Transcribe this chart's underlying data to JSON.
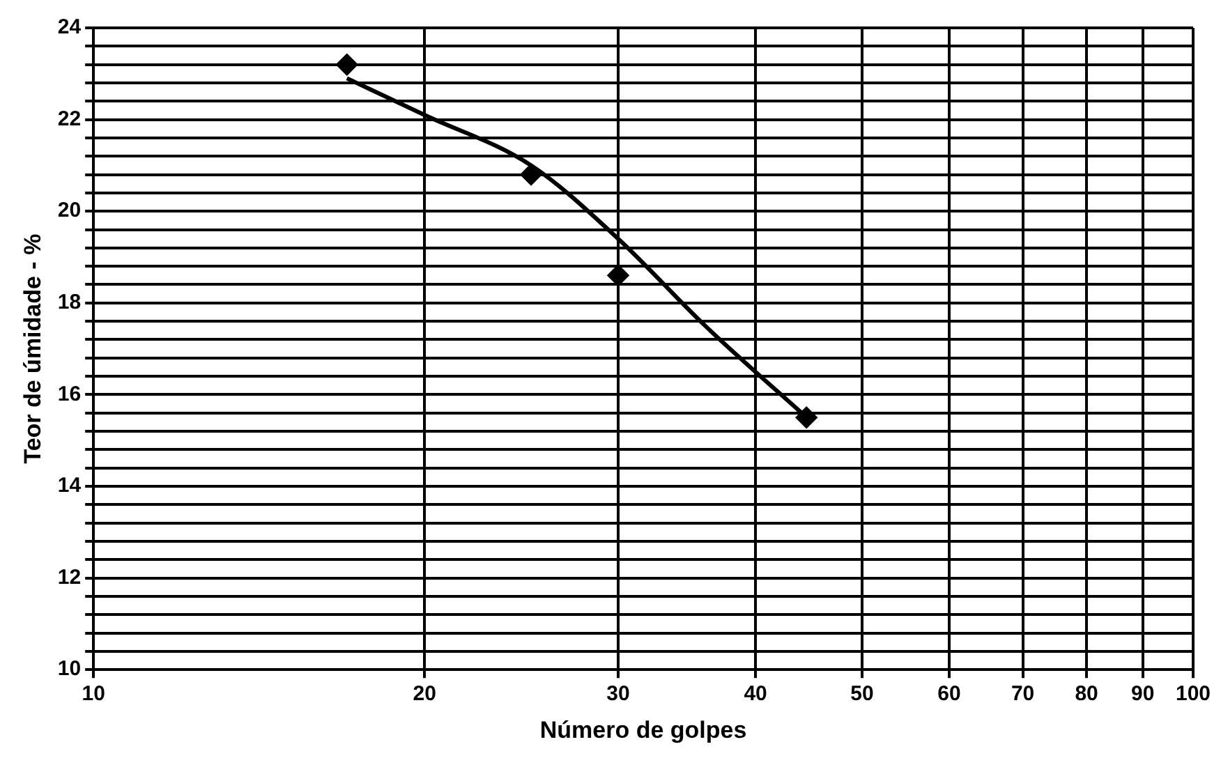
{
  "chart_data": {
    "type": "scatter",
    "xlabel": "Número de golpes",
    "ylabel": "Teor de úmidade - %",
    "log": "x",
    "grid": true,
    "legend": false,
    "xlim": [
      10,
      100
    ],
    "xticks": [
      10,
      20,
      30,
      40,
      50,
      60,
      70,
      80,
      90,
      100
    ],
    "ylim": [
      10,
      24
    ],
    "yticks": [
      10,
      {
        "value": 10.4,
        "label": null
      },
      {
        "value": 10.8,
        "label": null
      },
      {
        "value": 11.2,
        "label": null
      },
      {
        "value": 11.6,
        "label": null
      },
      12,
      {
        "value": 12.4,
        "label": null
      },
      {
        "value": 12.8,
        "label": null
      },
      {
        "value": 13.2,
        "label": null
      },
      {
        "value": 13.6,
        "label": null
      },
      14,
      {
        "value": 14.4,
        "label": null
      },
      {
        "value": 14.8,
        "label": null
      },
      {
        "value": 15.2,
        "label": null
      },
      {
        "value": 15.6,
        "label": null
      },
      16,
      {
        "value": 16.4,
        "label": null
      },
      {
        "value": 16.8,
        "label": null
      },
      {
        "value": 17.2,
        "label": null
      },
      {
        "value": 17.6,
        "label": null
      },
      18,
      {
        "value": 18.4,
        "label": null
      },
      {
        "value": 18.8,
        "label": null
      },
      {
        "value": 19.2,
        "label": null
      },
      {
        "value": 19.6,
        "label": null
      },
      20,
      {
        "value": 20.4,
        "label": null
      },
      {
        "value": 20.8,
        "label": null
      },
      {
        "value": 21.2,
        "label": null
      },
      {
        "value": 21.6,
        "label": null
      },
      22,
      {
        "value": 22.4,
        "label": null
      },
      {
        "value": 22.8,
        "label": null
      },
      {
        "value": 23.2,
        "label": null
      },
      {
        "value": 23.6,
        "label": null
      },
      24
    ],
    "series": [
      {
        "type": "scatter",
        "color": "#000000",
        "marker": "diamond",
        "x": [
          17,
          25,
          30,
          44.5
        ],
        "values": [
          23.2,
          20.8,
          18.6,
          15.5
        ]
      },
      {
        "type": "line",
        "color": "#000000",
        "marker": "none",
        "line_style": "solid",
        "x": [
          17,
          20,
          25,
          30,
          36,
          45
        ],
        "values": [
          22.9,
          22.1,
          21,
          19.4,
          17.5,
          15.4
        ]
      }
    ]
  }
}
